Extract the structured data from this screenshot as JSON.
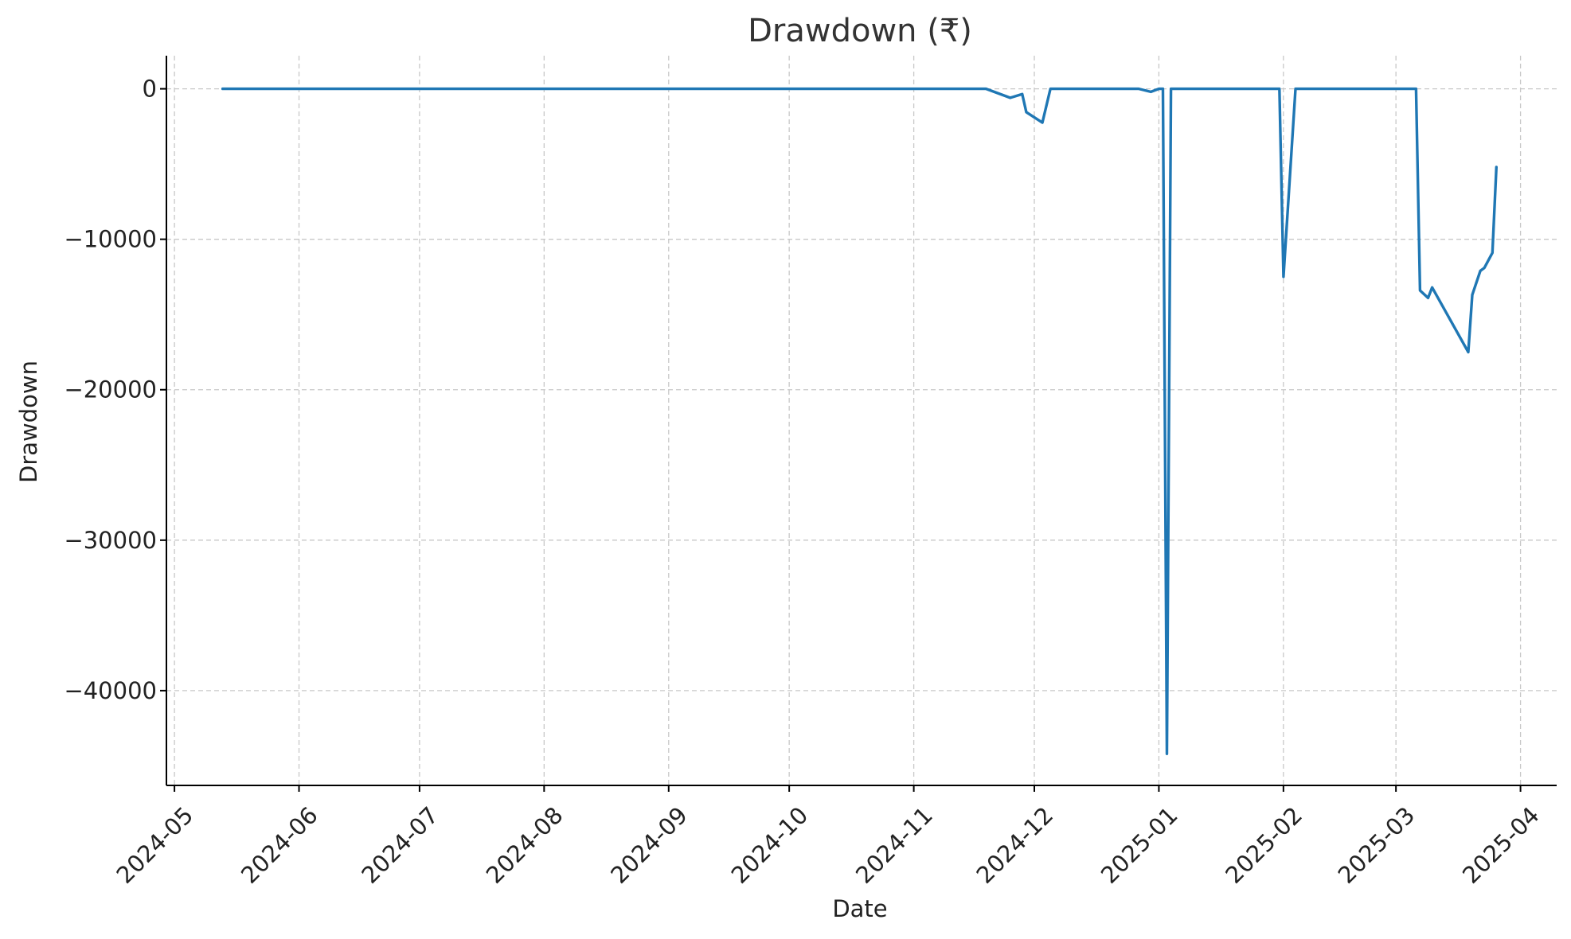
{
  "chart_data": {
    "type": "line",
    "title": "Drawdown (₹)",
    "xlabel": "Date",
    "ylabel": "Drawdown",
    "x_tick_labels": [
      "2024-05",
      "2024-06",
      "2024-07",
      "2024-08",
      "2024-09",
      "2024-10",
      "2024-11",
      "2024-12",
      "2025-01",
      "2025-02",
      "2025-03",
      "2025-04"
    ],
    "y_tick_labels": [
      "0",
      "−10000",
      "−20000",
      "−30000",
      "−40000"
    ],
    "y_ticks": [
      0,
      -10000,
      -20000,
      -30000,
      -40000
    ],
    "xlim": [
      "2024-04-29",
      "2025-04-10"
    ],
    "ylim": [
      -46300,
      2200
    ],
    "grid": true,
    "line_color": "#1f77b4",
    "series": [
      {
        "x": [
          "2024-05-13",
          "2024-11-19",
          "2024-11-25",
          "2024-11-28",
          "2024-11-29",
          "2024-12-03",
          "2024-12-05",
          "2024-12-27",
          "2024-12-30",
          "2025-01-01",
          "2025-01-02",
          "2025-01-03",
          "2025-01-04",
          "2025-01-31",
          "2025-02-01",
          "2025-02-04",
          "2025-03-06",
          "2025-03-07",
          "2025-03-09",
          "2025-03-10",
          "2025-03-19",
          "2025-03-20",
          "2025-03-22",
          "2025-03-23",
          "2025-03-25",
          "2025-03-26"
        ],
        "values": [
          0,
          0,
          -600,
          -350,
          -1550,
          -2250,
          0,
          0,
          -200,
          0,
          0,
          -44200,
          0,
          0,
          -12500,
          0,
          0,
          -13400,
          -13900,
          -13200,
          -17500,
          -13700,
          -12100,
          -11900,
          -10900,
          -5200
        ]
      }
    ]
  }
}
